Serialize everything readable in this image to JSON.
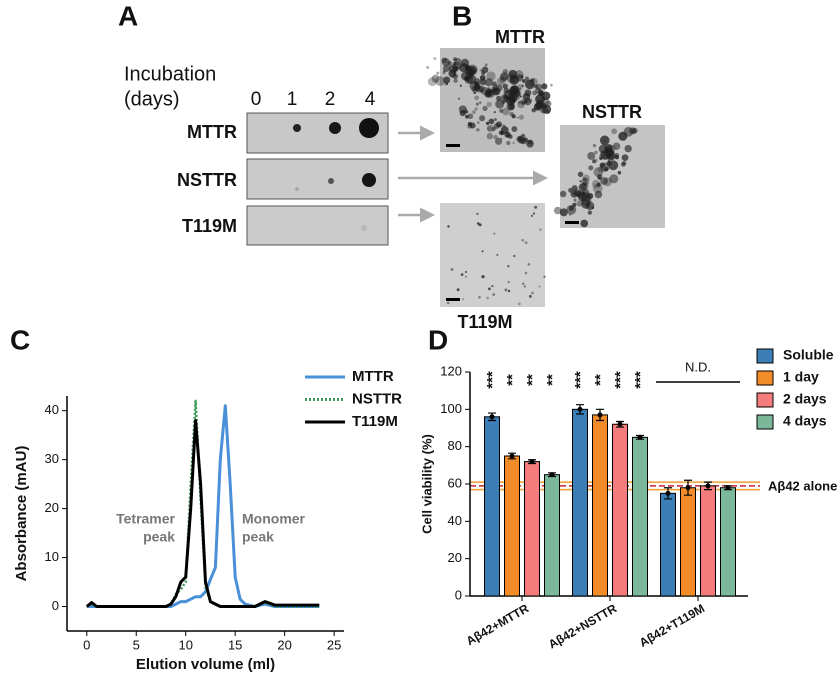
{
  "panel_a": {
    "label": "A",
    "incubation": [
      "Incubation",
      "(days)"
    ],
    "days": [
      "0",
      "1",
      "2",
      "4"
    ],
    "rows": [
      "MTTR",
      "NSTTR",
      "T119M"
    ]
  },
  "panel_b": {
    "label": "B",
    "images": [
      "MTTR",
      "NSTTR",
      "T119M"
    ]
  },
  "chart_data": [
    {
      "type": "line",
      "panel": "C",
      "x_label": "Elution volume (ml)",
      "y_label": "Absorbance (mAU)",
      "annotations": [
        [
          "Tetramer",
          "peak"
        ],
        [
          "Monomer",
          "peak"
        ]
      ],
      "xlim": [
        -2,
        26
      ],
      "xticks": [
        0,
        5,
        10,
        15,
        20,
        25
      ],
      "ylim": [
        -5,
        43
      ],
      "yticks": [
        0,
        10,
        20,
        30,
        40
      ],
      "x": [
        0,
        0.5,
        1,
        2,
        3,
        4,
        5,
        6,
        7,
        8,
        8.5,
        9,
        9.5,
        10,
        10.5,
        11,
        11.5,
        12,
        12.5,
        13,
        13.5,
        14,
        14.5,
        15,
        15.5,
        16,
        17,
        18,
        19,
        20,
        21,
        22,
        23,
        23.5
      ],
      "series": [
        {
          "name": "MTTR",
          "color": "#4a90d9",
          "style": "solid",
          "values": [
            0,
            0,
            0,
            0,
            0,
            0,
            0,
            0,
            0,
            0,
            0,
            0.5,
            1,
            1,
            1.5,
            2,
            2,
            3,
            5.5,
            8,
            30,
            41,
            25,
            6,
            1.5,
            0.5,
            0,
            0.5,
            0,
            0,
            0,
            0,
            0,
            0
          ]
        },
        {
          "name": "NSTTR",
          "color": "#3a9a5a",
          "style": "dotted",
          "values": [
            0,
            0.5,
            0,
            0,
            0,
            0,
            0,
            0,
            0,
            0,
            0.5,
            2.5,
            3.5,
            5,
            25,
            42,
            22,
            4,
            1,
            0.5,
            0,
            0,
            0,
            0,
            0,
            0,
            0,
            0.8,
            0,
            0,
            0,
            0,
            0,
            0
          ]
        },
        {
          "name": "T119M",
          "color": "#000000",
          "style": "solid",
          "values": [
            0,
            0.8,
            0,
            0,
            0,
            0,
            0,
            0,
            0,
            0,
            0.5,
            2,
            5,
            6,
            20,
            38,
            25,
            5,
            1,
            0.5,
            0,
            0,
            0,
            0,
            0,
            0,
            0,
            1,
            0.3,
            0.3,
            0.3,
            0.3,
            0.3,
            0.3
          ]
        }
      ]
    },
    {
      "type": "bar",
      "panel": "D",
      "y_label": "Cell viability (%)",
      "legend": "right",
      "categories": [
        "Aβ42+MTTR",
        "Aβ42+NSTTR",
        "Aβ42+T119M"
      ],
      "ylim": [
        0,
        120
      ],
      "yticks": [
        0,
        20,
        40,
        60,
        80,
        100,
        120
      ],
      "reference": {
        "label": "Aβ42 alone",
        "value": 59,
        "band": [
          57,
          61
        ]
      },
      "nd_label": "N.D.",
      "series": [
        {
          "name": "Soluble",
          "color": "#3b7fb6",
          "values": [
            96,
            100,
            55
          ],
          "errors": [
            2,
            2.5,
            3
          ],
          "stars": [
            "***",
            "***",
            null
          ]
        },
        {
          "name": "1 day",
          "color": "#f28c28",
          "values": [
            75,
            97,
            58
          ],
          "errors": [
            1.5,
            3,
            4
          ],
          "stars": [
            "**",
            "**",
            null
          ]
        },
        {
          "name": "2 days",
          "color": "#f47c7c",
          "values": [
            72,
            92,
            59
          ],
          "errors": [
            1,
            1.5,
            2
          ],
          "stars": [
            "**",
            "***",
            null
          ]
        },
        {
          "name": "4 days",
          "color": "#7bb89a",
          "values": [
            65,
            85,
            58
          ],
          "errors": [
            1,
            1,
            1
          ],
          "stars": [
            "**",
            "***",
            null
          ]
        }
      ]
    }
  ]
}
